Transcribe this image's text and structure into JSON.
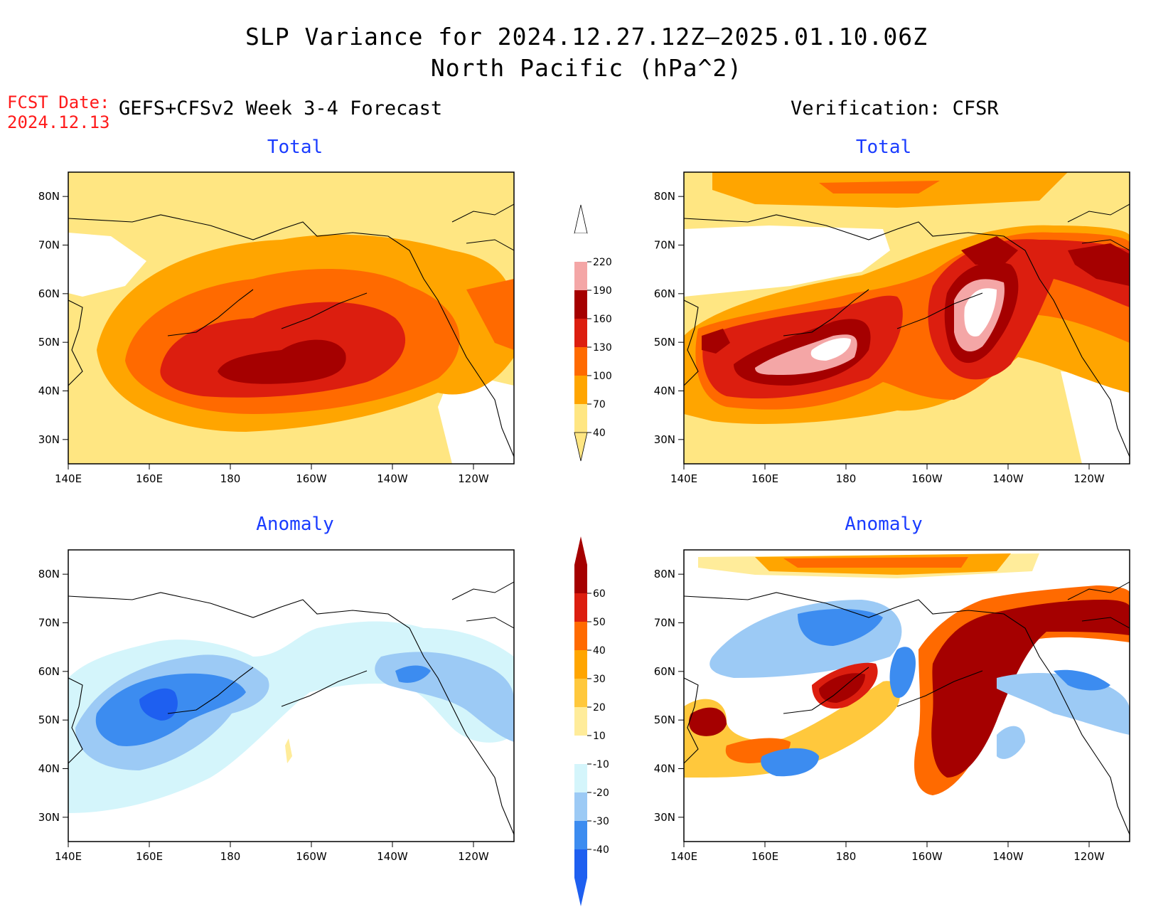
{
  "title_line1": "SLP Variance for 2024.12.27.12Z–2025.01.10.06Z",
  "title_line2": "North Pacific (hPa^2)",
  "fcst_label": "FCST Date:",
  "fcst_date": "2024.12.13",
  "left_column_title": "GEFS+CFSv2 Week 3-4 Forecast",
  "right_column_title": "Verification: CFSR",
  "panels": {
    "fc_total": "Total",
    "vf_total": "Total",
    "fc_anom": "Anomaly",
    "vf_anom": "Anomaly"
  },
  "chart_data": [
    {
      "type": "heatmap",
      "panel": "forecast-total",
      "title": "Total",
      "x_ticks": [
        "140E",
        "160E",
        "180",
        "160W",
        "140W",
        "120W"
      ],
      "y_ticks": [
        "30N",
        "40N",
        "50N",
        "60N",
        "70N",
        "80N"
      ],
      "xlim_deg_east": [
        140,
        250
      ],
      "ylim_deg_north": [
        25,
        85
      ],
      "features": [
        {
          "region": "central North Pacific near 45N 170W",
          "max_level": 160
        },
        {
          "region": "Gulf of Alaska / western Canada",
          "level": 100
        }
      ]
    },
    {
      "type": "heatmap",
      "panel": "verification-total",
      "title": "Total",
      "x_ticks": [
        "140E",
        "160E",
        "180",
        "160W",
        "140W",
        "120W"
      ],
      "y_ticks": [
        "30N",
        "40N",
        "50N",
        "60N",
        "70N",
        "80N"
      ],
      "xlim_deg_east": [
        140,
        250
      ],
      "ylim_deg_north": [
        25,
        85
      ],
      "features": [
        {
          "region": "near 45N 180",
          "max_level": 220
        },
        {
          "region": "near 50N 150W",
          "max_level": 220
        },
        {
          "region": "Alaska / NW Canada",
          "level": 160
        }
      ]
    },
    {
      "type": "heatmap",
      "panel": "forecast-anomaly",
      "title": "Anomaly",
      "x_ticks": [
        "140E",
        "160E",
        "180",
        "160W",
        "140W",
        "120W"
      ],
      "y_ticks": [
        "30N",
        "40N",
        "50N",
        "60N",
        "70N",
        "80N"
      ],
      "xlim_deg_east": [
        140,
        250
      ],
      "ylim_deg_north": [
        25,
        85
      ],
      "features": [
        {
          "region": "near 50N 160E",
          "min_level": -40
        },
        {
          "region": "Gulf of Alaska",
          "level": -30
        }
      ]
    },
    {
      "type": "heatmap",
      "panel": "verification-anomaly",
      "title": "Anomaly",
      "x_ticks": [
        "140E",
        "160E",
        "180",
        "160W",
        "140W",
        "120W"
      ],
      "y_ticks": [
        "30N",
        "40N",
        "50N",
        "60N",
        "70N",
        "80N"
      ],
      "xlim_deg_east": [
        140,
        250
      ],
      "ylim_deg_north": [
        25,
        85
      ],
      "features": [
        {
          "region": "near 50N 150W",
          "max_level": 60
        },
        {
          "region": "near 48N 178E",
          "max_level": 60
        },
        {
          "region": "Bering Sea / Chukotka",
          "level": -30
        }
      ]
    }
  ],
  "colorbars": {
    "total": {
      "labels": [
        "220",
        "190",
        "160",
        "130",
        "100",
        "70",
        "40"
      ],
      "colors": [
        "#ffffff",
        "#f4a6a6",
        "#a50000",
        "#dc1e0f",
        "#ff6a00",
        "#ffa500",
        "#ffe682"
      ]
    },
    "anomaly": {
      "labels": [
        "60",
        "50",
        "40",
        "30",
        "20",
        "10",
        "-10",
        "-20",
        "-30",
        "-40"
      ],
      "colors": [
        "#a50000",
        "#dc1e0f",
        "#ff6a00",
        "#ffa500",
        "#ffc83c",
        "#ffec9a",
        "#ffffff",
        "#d4f5fb",
        "#9ccaf5",
        "#3c8cf0",
        "#1e5ff0"
      ]
    }
  },
  "colors": {
    "title_text": "#000000",
    "fcst_text": "#ff1a1a",
    "panel_title": "#1a3cff"
  }
}
